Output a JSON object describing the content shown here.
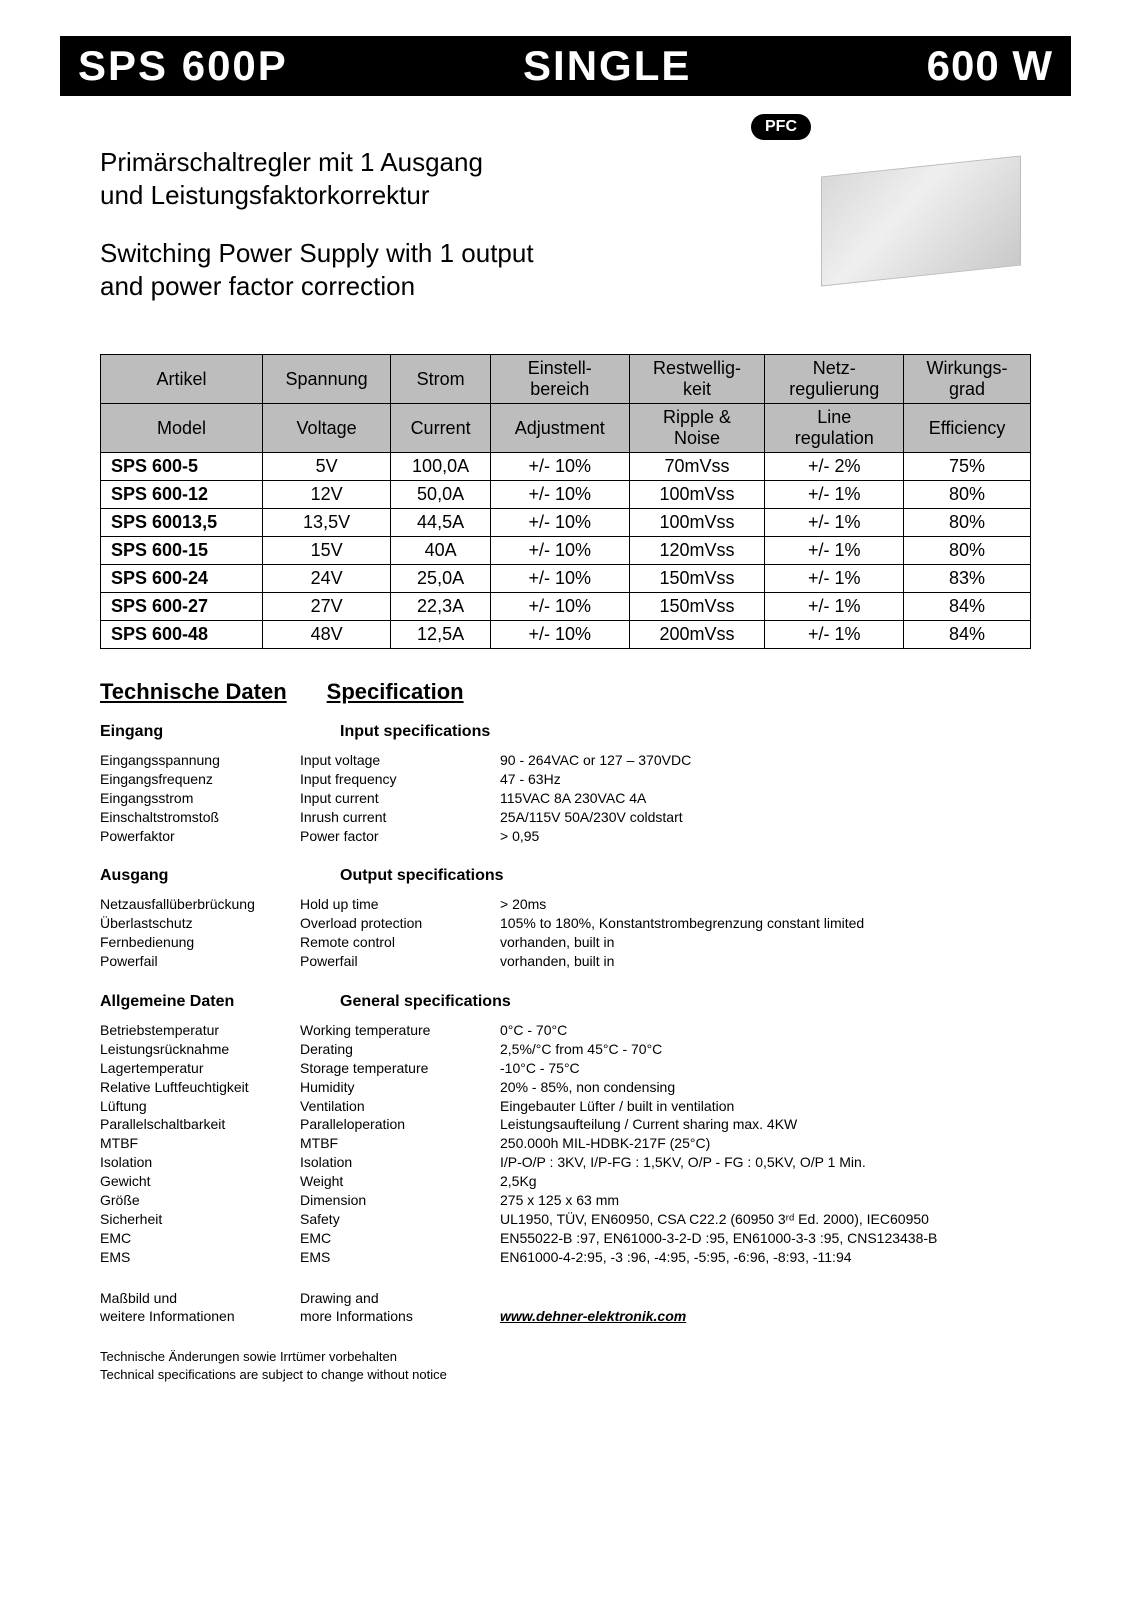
{
  "header": {
    "left": "SPS 600P",
    "center": "SINGLE",
    "right": "600 W"
  },
  "pfc_badge": "PFC",
  "intro": {
    "de_line1": "Primärschaltregler mit 1 Ausgang",
    "de_line2": "und Leistungsfaktorkorrektur",
    "en_line1": "Switching Power Supply with 1 output",
    "en_line2": "and power factor correction"
  },
  "table": {
    "head_de": [
      "Artikel",
      "Spannung",
      "Strom",
      "Einstell-\nbereich",
      "Restwellig-\nkeit",
      "Netz-\nregulierung",
      "Wirkungs-\ngrad"
    ],
    "head_en": [
      "Model",
      "Voltage",
      "Current",
      "Adjustment",
      "Ripple &\nNoise",
      "Line\nregulation",
      "Efficiency"
    ],
    "rows": [
      [
        "SPS 600-5",
        "5V",
        "100,0A",
        "+/- 10%",
        "70mVss",
        "+/- 2%",
        "75%"
      ],
      [
        "SPS 600-12",
        "12V",
        "50,0A",
        "+/- 10%",
        "100mVss",
        "+/- 1%",
        "80%"
      ],
      [
        "SPS 60013,5",
        "13,5V",
        "44,5A",
        "+/- 10%",
        "100mVss",
        "+/- 1%",
        "80%"
      ],
      [
        "SPS 600-15",
        "15V",
        "40A",
        "+/- 10%",
        "120mVss",
        "+/- 1%",
        "80%"
      ],
      [
        "SPS 600-24",
        "24V",
        "25,0A",
        "+/- 10%",
        "150mVss",
        "+/- 1%",
        "83%"
      ],
      [
        "SPS 600-27",
        "27V",
        "22,3A",
        "+/- 10%",
        "150mVss",
        "+/- 1%",
        "84%"
      ],
      [
        "SPS 600-48",
        "48V",
        "12,5A",
        "+/- 10%",
        "200mVss",
        "+/- 1%",
        "84%"
      ]
    ]
  },
  "section_titles": {
    "de": "Technische Daten",
    "en": "Specification"
  },
  "input": {
    "head_de": "Eingang",
    "head_en": "Input specifications",
    "rows": [
      [
        "Eingangsspannung",
        "Input voltage",
        "90 - 264VAC   or  127 – 370VDC"
      ],
      [
        "Eingangsfrequenz",
        "Input frequency",
        "47 - 63Hz"
      ],
      [
        "Eingangsstrom",
        "Input current",
        "115VAC 8A 230VAC 4A"
      ],
      [
        "Einschaltstromstoß",
        "Inrush current",
        "25A/115V  50A/230V  coldstart"
      ],
      [
        "Powerfaktor",
        "Power factor",
        "> 0,95"
      ]
    ]
  },
  "output": {
    "head_de": "Ausgang",
    "head_en": "Output specifications",
    "rows": [
      [
        "Netzausfallüberbrückung",
        "Hold up time",
        "> 20ms"
      ],
      [
        "Überlastschutz",
        "Overload protection",
        "105% to 180%, Konstantstrombegrenzung    constant limited"
      ],
      [
        "Fernbedienung",
        "Remote control",
        "vorhanden,  built in"
      ],
      [
        "Powerfail",
        "Powerfail",
        "vorhanden,  built in"
      ]
    ]
  },
  "general": {
    "head_de": "Allgemeine Daten",
    "head_en": "General specifications",
    "rows": [
      [
        "Betriebstemperatur",
        "Working temperature",
        "0°C - 70°C"
      ],
      [
        "Leistungsrücknahme",
        "Derating",
        "2,5%/°C from 45°C - 70°C"
      ],
      [
        "Lagertemperatur",
        "Storage temperature",
        "-10°C - 75°C"
      ],
      [
        "Relative Luftfeuchtigkeit",
        "Humidity",
        "20% - 85%, non condensing"
      ],
      [
        "Lüftung",
        "Ventilation",
        "Eingebauter Lüfter  /  built in ventilation"
      ],
      [
        "Parallelschaltbarkeit",
        "Paralleloperation",
        "Leistungsaufteilung /  Current sharing   max. 4KW"
      ],
      [
        "MTBF",
        "MTBF",
        "250.000h  MIL-HDBK-217F (25°C)"
      ],
      [
        "Isolation",
        "Isolation",
        "I/P-O/P : 3KV, I/P-FG : 1,5KV, O/P - FG : 0,5KV, O/P 1 Min."
      ],
      [
        "Gewicht",
        "Weight",
        "2,5Kg"
      ],
      [
        "Größe",
        "Dimension",
        "275 x 125 x 63 mm"
      ],
      [
        "Sicherheit",
        "Safety",
        "UL1950, TÜV, EN60950, CSA C22.2 (60950 3ʳᵈ Ed.  2000), IEC60950"
      ],
      [
        "EMC",
        "EMC",
        "EN55022-B :97, EN61000-3-2-D :95, EN61000-3-3 :95, CNS123438-B"
      ],
      [
        "EMS",
        "EMS",
        "EN61000-4-2:95, -3 :96, -4:95, -5:95, -6:96, -8:93, -11:94"
      ]
    ]
  },
  "more_info": {
    "de1": "Maßbild und",
    "de2": "weitere Informationen",
    "en1": "Drawing and",
    "en2": "more Informations",
    "url": "www.dehner-elektronik.com"
  },
  "footer": {
    "de": "Technische Änderungen sowie Irrtümer vorbehalten",
    "en": "Technical specifications are subject to change without notice"
  }
}
